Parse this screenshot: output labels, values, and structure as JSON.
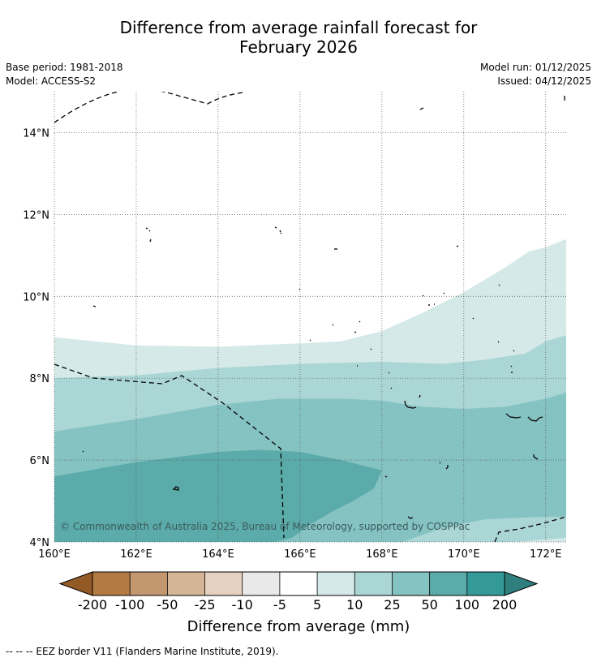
{
  "header": {
    "title_line1": "Difference from average rainfall forecast for",
    "title_line2": "February 2026",
    "base_period": "Base period: 1981-2018",
    "model": "Model: ACCESS-S2",
    "model_run": "Model run: 01/12/2025",
    "issued": "Issued: 04/12/2025"
  },
  "map": {
    "lon_range": [
      160,
      172.5
    ],
    "lat_range": [
      4,
      15
    ],
    "x_ticks": [
      {
        "value": 160,
        "label": "160°E"
      },
      {
        "value": 162,
        "label": "162°E"
      },
      {
        "value": 164,
        "label": "164°E"
      },
      {
        "value": 166,
        "label": "166°E"
      },
      {
        "value": 168,
        "label": "168°E"
      },
      {
        "value": 170,
        "label": "170°E"
      },
      {
        "value": 172,
        "label": "172°E"
      }
    ],
    "y_ticks": [
      {
        "value": 4,
        "label": "4°N"
      },
      {
        "value": 6,
        "label": "6°N"
      },
      {
        "value": 8,
        "label": "8°N"
      },
      {
        "value": 10,
        "label": "10°N"
      },
      {
        "value": 12,
        "label": "12°N"
      },
      {
        "value": 14,
        "label": "14°N"
      }
    ],
    "copyright": "© Commonwealth of Australia 2025, Bureau of Meteorology, supported by COSPPac",
    "contours": [
      {
        "band": "5 to 10 mm",
        "color": "#d4e9e8",
        "boundary": [
          [
            160,
            9.0
          ],
          [
            162,
            8.8
          ],
          [
            164,
            8.77
          ],
          [
            166,
            8.85
          ],
          [
            167,
            8.9
          ],
          [
            168,
            9.15
          ],
          [
            169,
            9.6
          ],
          [
            170,
            10.1
          ],
          [
            171,
            10.7
          ],
          [
            171.6,
            11.1
          ],
          [
            172,
            11.2
          ],
          [
            172.5,
            11.4
          ]
        ]
      },
      {
        "band": "10 to 25 mm",
        "color": "#aad6d5",
        "boundary": [
          [
            160,
            8.0
          ],
          [
            162,
            8.07
          ],
          [
            164,
            8.25
          ],
          [
            166,
            8.35
          ],
          [
            168,
            8.4
          ],
          [
            169.5,
            8.35
          ],
          [
            170.5,
            8.45
          ],
          [
            171.5,
            8.6
          ],
          [
            172,
            8.9
          ],
          [
            172.5,
            9.05
          ]
        ]
      },
      {
        "band": "25 to 50 mm",
        "color": "#85c3c2",
        "boundary": [
          [
            160,
            6.7
          ],
          [
            162,
            7.0
          ],
          [
            164,
            7.35
          ],
          [
            165.5,
            7.5
          ],
          [
            167,
            7.5
          ],
          [
            168,
            7.45
          ],
          [
            169,
            7.3
          ],
          [
            170,
            7.25
          ],
          [
            171,
            7.3
          ],
          [
            172,
            7.5
          ],
          [
            172.5,
            7.65
          ]
        ]
      },
      {
        "band": "50 to 100 mm",
        "color": "#5aabaa",
        "boundary": [
          [
            160,
            5.6
          ],
          [
            162,
            5.95
          ],
          [
            164,
            6.2
          ],
          [
            165,
            6.25
          ],
          [
            166,
            6.2
          ],
          [
            167,
            6.0
          ],
          [
            168,
            5.75
          ],
          [
            167.8,
            5.3
          ],
          [
            167.3,
            5.0
          ],
          [
            166.8,
            4.75
          ],
          [
            166.2,
            4.4
          ],
          [
            165.8,
            4.1
          ],
          [
            165.4,
            4.0
          ]
        ]
      },
      {
        "band": "10 to 25 mm",
        "color": "#aad6d5",
        "boundary": [
          [
            168.5,
            4.0
          ],
          [
            169.5,
            4.35
          ],
          [
            170.5,
            4.55
          ],
          [
            171.5,
            4.6
          ],
          [
            172.5,
            4.62
          ]
        ]
      },
      {
        "band": "5 to 10 mm",
        "color": "#d4e9e8",
        "boundary": [
          [
            171.2,
            4.0
          ],
          [
            172.5,
            4.1
          ]
        ]
      }
    ]
  },
  "colorbar": {
    "title": "Difference from average (mm)",
    "colors": [
      "#945a26",
      "#b27b44",
      "#c39870",
      "#d4b596",
      "#e5d1c0",
      "#e9e9e9",
      "#ffffff",
      "#d4e9e8",
      "#aad6d5",
      "#85c3c2",
      "#5aabaa",
      "#339a99",
      "#2f7f7f"
    ],
    "ticks": [
      "-200",
      "-100",
      "-50",
      "-25",
      "-10",
      "-5",
      "5",
      "10",
      "25",
      "50",
      "100",
      "200"
    ]
  },
  "footer": {
    "legend_line": "-- -- -- EEZ border V11 (Flanders Marine Institute, 2019)."
  }
}
